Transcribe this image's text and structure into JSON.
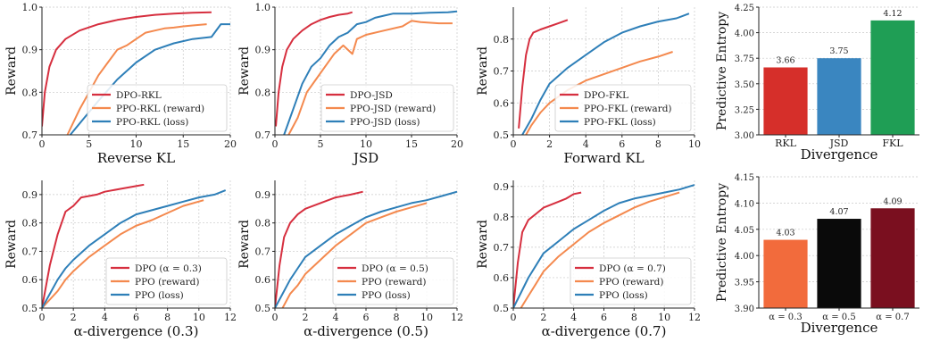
{
  "chart_data": [
    {
      "type": "line",
      "xlabel": "Reverse KL",
      "ylabel": "Reward",
      "xlim": [
        0,
        20
      ],
      "ylim": [
        0.7,
        1.0
      ],
      "xticks": [
        0,
        5,
        10,
        15,
        20
      ],
      "yticks": [
        0.7,
        0.8,
        0.9,
        1.0
      ],
      "xtick_labels": [
        "0",
        "5",
        "10",
        "15",
        "20"
      ],
      "ytick_labels": [
        "0.7",
        "0.8",
        "0.9",
        "1.0"
      ],
      "legend_position": "bottom-right",
      "series": [
        {
          "name": "DPO-RKL",
          "color": "#d62f3f",
          "x": [
            0,
            0.3,
            0.8,
            1.5,
            2.5,
            4,
            6,
            8,
            10,
            12,
            14,
            16,
            18
          ],
          "y": [
            0.72,
            0.8,
            0.86,
            0.9,
            0.925,
            0.945,
            0.96,
            0.97,
            0.977,
            0.982,
            0.985,
            0.987,
            0.988
          ]
        },
        {
          "name": "PPO-RKL (reward)",
          "color": "#f4894e",
          "x": [
            2.7,
            4,
            5,
            6,
            7,
            8,
            9,
            10,
            11,
            12,
            13,
            14,
            15,
            16,
            17.5
          ],
          "y": [
            0.7,
            0.76,
            0.8,
            0.84,
            0.87,
            0.9,
            0.91,
            0.925,
            0.94,
            0.945,
            0.95,
            0.952,
            0.955,
            0.957,
            0.96
          ]
        },
        {
          "name": "PPO-RKL (loss)",
          "color": "#2e7fb8",
          "x": [
            3,
            4.5,
            6,
            8,
            10,
            12,
            14,
            16,
            18,
            19,
            20
          ],
          "y": [
            0.7,
            0.74,
            0.78,
            0.83,
            0.87,
            0.9,
            0.915,
            0.925,
            0.93,
            0.96,
            0.96
          ]
        }
      ]
    },
    {
      "type": "line",
      "xlabel": "JSD",
      "ylabel": "Reward",
      "xlim": [
        0,
        20
      ],
      "ylim": [
        0.7,
        1.0
      ],
      "xticks": [
        0,
        5,
        10,
        15,
        20
      ],
      "yticks": [
        0.7,
        0.8,
        0.9,
        1.0
      ],
      "xtick_labels": [
        "0",
        "5",
        "10",
        "15",
        "20"
      ],
      "ytick_labels": [
        "0.7",
        "0.8",
        "0.9",
        "1.0"
      ],
      "legend_position": "bottom-right",
      "series": [
        {
          "name": "DPO-JSD",
          "color": "#d62f3f",
          "x": [
            0.1,
            0.4,
            0.8,
            1.3,
            2,
            3,
            4,
            5,
            6,
            7,
            8,
            8.5
          ],
          "y": [
            0.72,
            0.8,
            0.86,
            0.9,
            0.925,
            0.945,
            0.96,
            0.97,
            0.977,
            0.982,
            0.985,
            0.988
          ]
        },
        {
          "name": "PPO-JSD (reward)",
          "color": "#f4894e",
          "x": [
            1.5,
            2.5,
            3.5,
            4.5,
            5.5,
            6.5,
            7.5,
            8.5,
            9,
            10,
            12,
            14,
            15,
            16,
            18,
            19.5
          ],
          "y": [
            0.7,
            0.74,
            0.8,
            0.83,
            0.86,
            0.89,
            0.91,
            0.89,
            0.925,
            0.935,
            0.945,
            0.955,
            0.968,
            0.965,
            0.962,
            0.962
          ]
        },
        {
          "name": "PPO-JSD (loss)",
          "color": "#2e7fb8",
          "x": [
            1,
            2,
            3,
            4,
            5,
            6,
            7,
            8,
            9,
            10,
            11,
            12,
            13,
            15,
            17,
            19,
            20
          ],
          "y": [
            0.7,
            0.76,
            0.82,
            0.86,
            0.88,
            0.91,
            0.93,
            0.94,
            0.96,
            0.965,
            0.975,
            0.98,
            0.985,
            0.985,
            0.987,
            0.988,
            0.99
          ]
        }
      ]
    },
    {
      "type": "line",
      "xlabel": "Forward KL",
      "ylabel": "Reward",
      "xlim": [
        0,
        10
      ],
      "ylim": [
        0.5,
        0.9
      ],
      "xticks": [
        0,
        2,
        4,
        6,
        8,
        10
      ],
      "yticks": [
        0.5,
        0.6,
        0.7,
        0.8
      ],
      "xtick_labels": [
        "0",
        "2",
        "4",
        "6",
        "8",
        "10"
      ],
      "ytick_labels": [
        "0.5",
        "0.6",
        "0.7",
        "0.8"
      ],
      "legend_position": "bottom-right",
      "series": [
        {
          "name": "DPO-FKL",
          "color": "#d62f3f",
          "x": [
            0.3,
            0.5,
            0.7,
            0.9,
            1.1,
            1.5,
            2,
            2.5,
            3
          ],
          "y": [
            0.52,
            0.65,
            0.75,
            0.8,
            0.82,
            0.83,
            0.84,
            0.85,
            0.86
          ]
        },
        {
          "name": "PPO-FKL (reward)",
          "color": "#f4894e",
          "x": [
            0.7,
            1,
            1.5,
            2,
            3,
            4,
            5,
            6,
            7,
            8,
            8.8
          ],
          "y": [
            0.5,
            0.53,
            0.57,
            0.6,
            0.64,
            0.67,
            0.69,
            0.71,
            0.73,
            0.745,
            0.76
          ]
        },
        {
          "name": "PPO-FKL (loss)",
          "color": "#2e7fb8",
          "x": [
            0.5,
            1,
            1.5,
            2,
            3,
            4,
            5,
            6,
            7,
            8,
            9,
            9.7
          ],
          "y": [
            0.5,
            0.55,
            0.61,
            0.66,
            0.71,
            0.75,
            0.79,
            0.82,
            0.84,
            0.855,
            0.865,
            0.88
          ]
        }
      ]
    },
    {
      "type": "bar",
      "xlabel": "Divergence",
      "ylabel": "Predictive Entropy",
      "categories": [
        "RKL",
        "JSD",
        "FKL"
      ],
      "values": [
        3.66,
        3.75,
        4.12
      ],
      "value_labels": [
        "3.66",
        "3.75",
        "4.12"
      ],
      "colors": [
        "#d62f2a",
        "#3a86c0",
        "#1f9e55"
      ],
      "ylim": [
        3.0,
        4.25
      ],
      "yticks": [
        3.0,
        3.25,
        3.5,
        3.75,
        4.0,
        4.25
      ],
      "ytick_labels": [
        "3.00",
        "3.25",
        "3.50",
        "3.75",
        "4.00",
        "4.25"
      ]
    },
    {
      "type": "line",
      "xlabel": "α-divergence (0.3)",
      "ylabel": "Reward",
      "xlim": [
        0,
        12
      ],
      "ylim": [
        0.5,
        0.95
      ],
      "xticks": [
        0,
        2,
        4,
        6,
        8,
        10,
        12
      ],
      "yticks": [
        0.5,
        0.6,
        0.7,
        0.8,
        0.9
      ],
      "xtick_labels": [
        "0",
        "2",
        "4",
        "6",
        "8",
        "10",
        "12"
      ],
      "ytick_labels": [
        "0.5",
        "0.6",
        "0.7",
        "0.8",
        "0.9"
      ],
      "legend_position": "bottom-right",
      "series": [
        {
          "name": "DPO (α = 0.3)",
          "color": "#d62f3f",
          "x": [
            0,
            0.5,
            1,
            1.5,
            2,
            2.5,
            3,
            3.5,
            4,
            5,
            6,
            6.5
          ],
          "y": [
            0.5,
            0.65,
            0.76,
            0.84,
            0.86,
            0.89,
            0.895,
            0.9,
            0.91,
            0.92,
            0.93,
            0.935
          ]
        },
        {
          "name": "PPO (reward)",
          "color": "#f4894e",
          "x": [
            0,
            0.5,
            1,
            1.5,
            2,
            3,
            4,
            5,
            6,
            7,
            8,
            9,
            10.3
          ],
          "y": [
            0.5,
            0.53,
            0.56,
            0.6,
            0.63,
            0.68,
            0.72,
            0.76,
            0.79,
            0.81,
            0.835,
            0.86,
            0.88
          ]
        },
        {
          "name": "PPO (loss)",
          "color": "#2e7fb8",
          "x": [
            0,
            0.5,
            1,
            1.5,
            2,
            3,
            4,
            5,
            6,
            7,
            8,
            9,
            10,
            11,
            11.7
          ],
          "y": [
            0.5,
            0.55,
            0.6,
            0.64,
            0.67,
            0.72,
            0.76,
            0.8,
            0.83,
            0.845,
            0.86,
            0.875,
            0.89,
            0.9,
            0.915
          ]
        }
      ]
    },
    {
      "type": "line",
      "xlabel": "α-divergence (0.5)",
      "ylabel": "Reward",
      "xlim": [
        0,
        12
      ],
      "ylim": [
        0.5,
        0.95
      ],
      "xticks": [
        0,
        2,
        4,
        6,
        8,
        10,
        12
      ],
      "yticks": [
        0.5,
        0.6,
        0.7,
        0.8,
        0.9
      ],
      "xtick_labels": [
        "0",
        "2",
        "4",
        "6",
        "8",
        "10",
        "12"
      ],
      "ytick_labels": [
        "0.5",
        "0.6",
        "0.7",
        "0.8",
        "0.9"
      ],
      "legend_position": "bottom-right",
      "series": [
        {
          "name": "DPO (α = 0.5)",
          "color": "#d62f3f",
          "x": [
            0,
            0.3,
            0.6,
            1,
            1.5,
            2,
            3,
            4,
            5,
            5.8
          ],
          "y": [
            0.5,
            0.65,
            0.75,
            0.8,
            0.83,
            0.85,
            0.87,
            0.89,
            0.9,
            0.91
          ]
        },
        {
          "name": "PPO (reward)",
          "color": "#f4894e",
          "x": [
            0.5,
            1,
            1.5,
            2,
            3,
            4,
            5,
            6,
            7,
            8,
            9,
            10
          ],
          "y": [
            0.5,
            0.55,
            0.58,
            0.62,
            0.67,
            0.72,
            0.76,
            0.8,
            0.82,
            0.84,
            0.855,
            0.87
          ]
        },
        {
          "name": "PPO (loss)",
          "color": "#2e7fb8",
          "x": [
            0,
            0.5,
            1,
            1.5,
            2,
            3,
            4,
            5,
            6,
            7,
            8,
            9,
            10,
            11,
            12
          ],
          "y": [
            0.5,
            0.55,
            0.6,
            0.64,
            0.68,
            0.72,
            0.76,
            0.79,
            0.82,
            0.84,
            0.855,
            0.87,
            0.88,
            0.895,
            0.91
          ]
        }
      ]
    },
    {
      "type": "line",
      "xlabel": "α-divergence (0.7)",
      "ylabel": "Reward",
      "xlim": [
        0,
        12
      ],
      "ylim": [
        0.5,
        0.92
      ],
      "xticks": [
        0,
        2,
        4,
        6,
        8,
        10,
        12
      ],
      "yticks": [
        0.5,
        0.6,
        0.7,
        0.8,
        0.9
      ],
      "xtick_labels": [
        "0",
        "2",
        "4",
        "6",
        "8",
        "10",
        "12"
      ],
      "ytick_labels": [
        "0.5",
        "0.6",
        "0.7",
        "0.8",
        "0.9"
      ],
      "legend_position": "bottom-right",
      "series": [
        {
          "name": "DPO (α = 0.7)",
          "color": "#d62f3f",
          "x": [
            0,
            0.3,
            0.6,
            1,
            1.5,
            2,
            2.5,
            3,
            3.5,
            4,
            4.5
          ],
          "y": [
            0.5,
            0.65,
            0.75,
            0.79,
            0.81,
            0.83,
            0.84,
            0.85,
            0.86,
            0.875,
            0.88
          ]
        },
        {
          "name": "PPO (reward)",
          "color": "#f4894e",
          "x": [
            0.5,
            1,
            1.5,
            2,
            3,
            4,
            5,
            6,
            7,
            8,
            9,
            10,
            11
          ],
          "y": [
            0.5,
            0.54,
            0.58,
            0.62,
            0.67,
            0.71,
            0.75,
            0.78,
            0.805,
            0.83,
            0.85,
            0.865,
            0.88
          ]
        },
        {
          "name": "PPO (loss)",
          "color": "#2e7fb8",
          "x": [
            0,
            0.5,
            1,
            1.5,
            2,
            3,
            4,
            5,
            6,
            7,
            8,
            9,
            10,
            11,
            12
          ],
          "y": [
            0.5,
            0.55,
            0.6,
            0.64,
            0.68,
            0.72,
            0.76,
            0.79,
            0.82,
            0.845,
            0.86,
            0.87,
            0.88,
            0.89,
            0.905
          ]
        }
      ]
    },
    {
      "type": "bar",
      "xlabel": "Divergence",
      "ylabel": "Predictive Entropy",
      "categories": [
        "α = 0.3",
        "α = 0.5",
        "α = 0.7"
      ],
      "values": [
        4.03,
        4.07,
        4.09
      ],
      "value_labels": [
        "4.03",
        "4.07",
        "4.09"
      ],
      "colors": [
        "#f26b3c",
        "#0a0a0a",
        "#7a0f1f"
      ],
      "ylim": [
        3.9,
        4.15
      ],
      "yticks": [
        3.9,
        3.95,
        4.0,
        4.05,
        4.1,
        4.15
      ],
      "ytick_labels": [
        "3.90",
        "3.95",
        "4.00",
        "4.05",
        "4.10",
        "4.15"
      ]
    }
  ]
}
